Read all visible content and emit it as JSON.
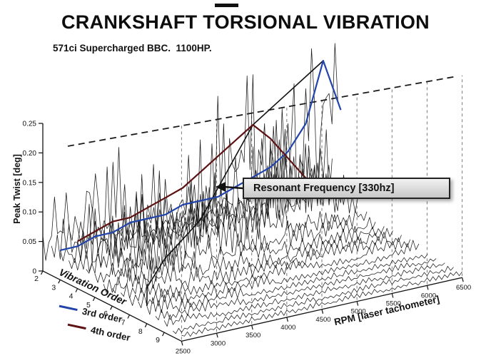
{
  "header": {
    "title": "CRANKSHAFT TORSIONAL VIBRATION",
    "subtitle": "571ci Supercharged BBC.  1100HP."
  },
  "axes": {
    "z": "Peak Twist [deg]",
    "x": "RPM [laser tachometer]",
    "y": "Vibration Order"
  },
  "legend": {
    "title": "Vibration Order",
    "items": [
      {
        "label": "3rd order",
        "color": "#2244aa"
      },
      {
        "label": "4th order",
        "color": "#5c1212"
      }
    ]
  },
  "chart_data": {
    "type": "line",
    "variant": "3d-waterfall",
    "title": "CRANKSHAFT TORSIONAL VIBRATION",
    "subtitle": "571ci Supercharged BBC.  1100HP.",
    "xlabel": "RPM [laser tachometer]",
    "ylabel": "Vibration Order",
    "zlabel": "Peak Twist [deg]",
    "zlim": [
      0,
      0.25
    ],
    "z_ticks": [
      "0",
      "0.05",
      "0.10",
      "0.15",
      "0.20",
      "0.25"
    ],
    "z_tick_values": [
      0,
      0.05,
      0.1,
      0.15,
      0.2,
      0.25
    ],
    "order_ticks": [
      2,
      3,
      4,
      5,
      6,
      7,
      8,
      9
    ],
    "rpm_ticks": [
      2500,
      3000,
      3500,
      4000,
      4500,
      5000,
      5500,
      6000,
      6500
    ],
    "grid": "dashed-vertical",
    "limit_line": "dashed",
    "rpm": [
      2500,
      2750,
      3000,
      3250,
      3500,
      3750,
      4000,
      4250,
      4500,
      4750,
      5000,
      5250,
      5500,
      5750,
      6000,
      6250,
      6500
    ],
    "series": [
      {
        "order": 2,
        "values": [
          0.06,
          0.1,
          0.15,
          0.09,
          0.13,
          0.07,
          0.05,
          0.04,
          0.04,
          0.03,
          0.03,
          0.03,
          0.03,
          0.04,
          0.04,
          0.05,
          0.05
        ]
      },
      {
        "order": 2.5,
        "values": [
          0.05,
          0.07,
          0.06,
          0.08,
          0.06,
          0.05,
          0.04,
          0.04,
          0.04,
          0.03,
          0.04,
          0.04,
          0.05,
          0.06,
          0.07,
          0.08,
          0.09
        ]
      },
      {
        "order": 3,
        "values": [
          0.05,
          0.05,
          0.06,
          0.06,
          0.07,
          0.07,
          0.07,
          0.08,
          0.08,
          0.08,
          0.09,
          0.1,
          0.11,
          0.13,
          0.17,
          0.27,
          0.18
        ]
      },
      {
        "order": 3.5,
        "values": [
          0.04,
          0.04,
          0.05,
          0.05,
          0.05,
          0.06,
          0.06,
          0.07,
          0.07,
          0.08,
          0.09,
          0.11,
          0.13,
          0.1,
          0.07,
          0.06,
          0.05
        ]
      },
      {
        "order": 4,
        "values": [
          0.08,
          0.09,
          0.1,
          0.1,
          0.11,
          0.12,
          0.13,
          0.15,
          0.17,
          0.19,
          0.21,
          0.18,
          0.14,
          0.1,
          0.08,
          0.06,
          0.05
        ]
      },
      {
        "order": 4.5,
        "values": [
          0.04,
          0.05,
          0.05,
          0.06,
          0.07,
          0.08,
          0.1,
          0.11,
          0.09,
          0.07,
          0.06,
          0.05,
          0.04,
          0.04,
          0.03,
          0.03,
          0.03
        ]
      },
      {
        "order": 5,
        "values": [
          0.04,
          0.04,
          0.05,
          0.06,
          0.07,
          0.08,
          0.09,
          0.07,
          0.06,
          0.05,
          0.04,
          0.04,
          0.03,
          0.03,
          0.03,
          0.02,
          0.02
        ]
      },
      {
        "order": 5.5,
        "values": [
          0.03,
          0.04,
          0.05,
          0.06,
          0.07,
          0.06,
          0.05,
          0.04,
          0.04,
          0.03,
          0.03,
          0.02,
          0.02,
          0.02,
          0.02,
          0.02,
          0.02
        ]
      },
      {
        "order": 6,
        "values": [
          0.03,
          0.04,
          0.05,
          0.06,
          0.05,
          0.04,
          0.03,
          0.03,
          0.02,
          0.02,
          0.02,
          0.02,
          0.02,
          0.02,
          0.02,
          0.02,
          0.02
        ]
      },
      {
        "order": 6.5,
        "values": [
          0.03,
          0.04,
          0.05,
          0.04,
          0.03,
          0.03,
          0.02,
          0.02,
          0.02,
          0.02,
          0.02,
          0.02,
          0.02,
          0.02,
          0.02,
          0.02,
          0.02
        ]
      },
      {
        "order": 7,
        "values": [
          0.03,
          0.04,
          0.03,
          0.03,
          0.02,
          0.02,
          0.02,
          0.02,
          0.02,
          0.02,
          0.02,
          0.01,
          0.01,
          0.01,
          0.02,
          0.02,
          0.02
        ]
      },
      {
        "order": 7.5,
        "values": [
          0.03,
          0.03,
          0.03,
          0.02,
          0.02,
          0.02,
          0.02,
          0.02,
          0.01,
          0.01,
          0.01,
          0.01,
          0.01,
          0.01,
          0.01,
          0.02,
          0.02
        ]
      },
      {
        "order": 8,
        "values": [
          0.03,
          0.03,
          0.02,
          0.02,
          0.02,
          0.02,
          0.01,
          0.01,
          0.01,
          0.01,
          0.01,
          0.01,
          0.01,
          0.01,
          0.01,
          0.01,
          0.01
        ]
      },
      {
        "order": 8.5,
        "values": [
          0.02,
          0.02,
          0.02,
          0.02,
          0.02,
          0.01,
          0.01,
          0.01,
          0.01,
          0.01,
          0.01,
          0.01,
          0.01,
          0.01,
          0.01,
          0.01,
          0.01
        ]
      },
      {
        "order": 9,
        "values": [
          0.02,
          0.02,
          0.02,
          0.01,
          0.01,
          0.01,
          0.01,
          0.01,
          0.01,
          0.01,
          0.01,
          0.01,
          0.01,
          0.01,
          0.01,
          0.01,
          0.01
        ]
      },
      {
        "order": 9.5,
        "values": [
          0.01,
          0.01,
          0.01,
          0.01,
          0.01,
          0.01,
          0.01,
          0.01,
          0.01,
          0.01,
          0.01,
          0.01,
          0.01,
          0.01,
          0.01,
          0.01,
          0.01
        ]
      },
      {
        "order": 10,
        "values": [
          0.01,
          0.01,
          0.01,
          0.01,
          0.01,
          0.01,
          0.01,
          0.01,
          0.01,
          0.01,
          0.01,
          0.01,
          0.01,
          0.01,
          0.01,
          0.01,
          0.01
        ]
      }
    ],
    "highlights": [
      {
        "name": "3rd order",
        "order": 3,
        "color": "#2244aa"
      },
      {
        "name": "4th order",
        "order": 4,
        "color": "#5c1212"
      }
    ],
    "annotations": {
      "resonant_label": "Resonant Frequency [330hz]",
      "resonant_frequency_hz": 330
    }
  }
}
